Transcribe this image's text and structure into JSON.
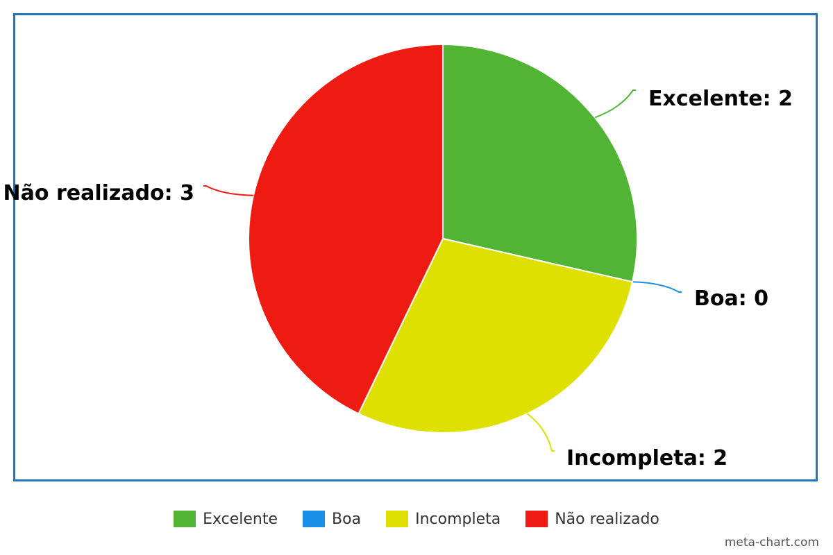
{
  "chart_data": {
    "type": "pie",
    "slices": [
      {
        "label": "Excelente",
        "value": 2,
        "color": "#52b435",
        "display": "Excelente: 2"
      },
      {
        "label": "Boa",
        "value": 0,
        "color": "#1b8fe8",
        "display": "Boa: 0"
      },
      {
        "label": "Incompleta",
        "value": 2,
        "color": "#dde000",
        "display": "Incompleta: 2"
      },
      {
        "label": "Não realizado",
        "value": 3,
        "color": "#ee1b12",
        "display": "Não realizado: 3"
      }
    ],
    "start_angle_deg": 0,
    "direction": "clockwise",
    "legend_position": "bottom",
    "border_color": "#1f76bf"
  },
  "watermark": "meta-chart.com"
}
